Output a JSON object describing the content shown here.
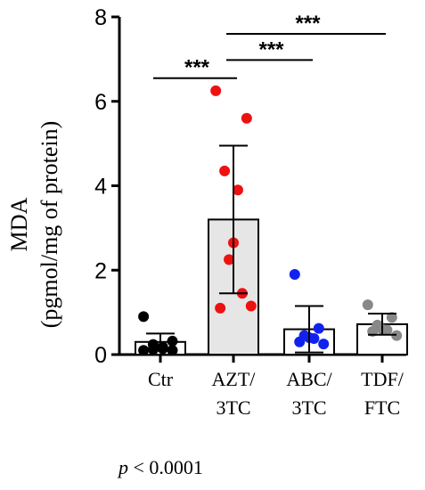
{
  "chart_data": {
    "type": "bar",
    "ylabel_line1": "MDA",
    "ylabel_line2": "(pgmol/mg of protein)",
    "ylim": [
      0,
      8
    ],
    "yticks": [
      0,
      2,
      4,
      6,
      8
    ],
    "categories": [
      {
        "line1": "Ctr",
        "line2": ""
      },
      {
        "line1": "AZT/",
        "line2": "3TC"
      },
      {
        "line1": "ABC/",
        "line2": "3TC"
      },
      {
        "line1": "TDF/",
        "line2": "FTC"
      }
    ],
    "means": [
      0.3,
      3.2,
      0.6,
      0.72
    ],
    "sd": [
      0.2,
      1.75,
      0.55,
      0.25
    ],
    "bar_fill": [
      "#ffffff",
      "#e6e6e6",
      "#ffffff",
      "#ffffff"
    ],
    "point_color": [
      "#000000",
      "#ee1111",
      "#1122ee",
      "#888888"
    ],
    "points": [
      [
        0.9,
        0.32,
        0.24,
        0.18,
        0.14,
        0.12,
        0.1,
        0.1
      ],
      [
        6.25,
        5.6,
        4.35,
        3.9,
        2.65,
        2.25,
        1.45,
        1.1,
        1.15
      ],
      [
        1.9,
        0.62,
        0.45,
        0.4,
        0.38,
        0.3,
        0.25
      ],
      [
        1.18,
        0.88,
        0.7,
        0.6,
        0.58,
        0.55,
        0.45
      ]
    ],
    "significance": [
      {
        "from": 0,
        "to": 1,
        "y": 6.55,
        "label": "***"
      },
      {
        "from": 1,
        "to": 2,
        "y": 6.98,
        "label": "***"
      },
      {
        "from": 1,
        "to": 3,
        "y": 7.6,
        "label": "***"
      }
    ],
    "p_label_italic": "p",
    "p_label_rest": " < 0.0001"
  }
}
